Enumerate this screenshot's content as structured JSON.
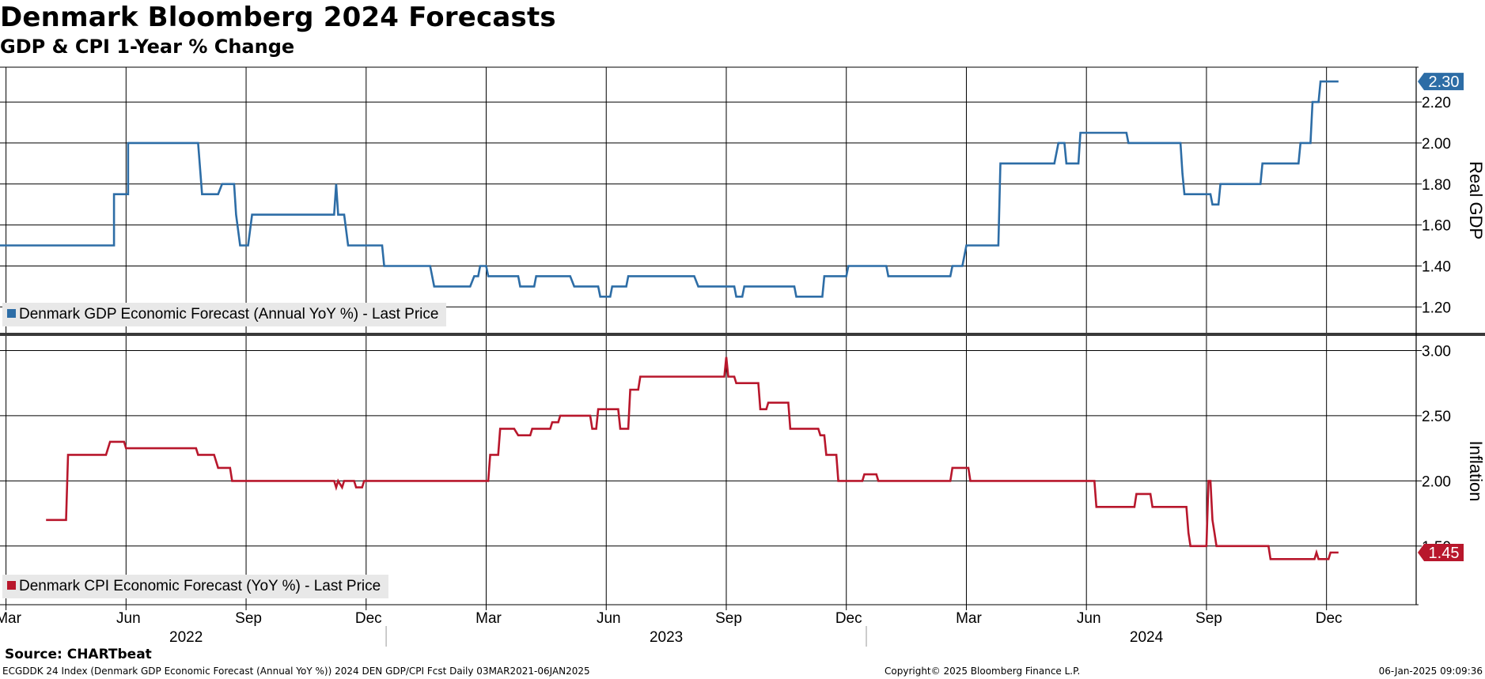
{
  "header": {
    "title": "Denmark Bloomberg 2024 Forecasts",
    "subtitle": "GDP & CPI 1-Year % Change"
  },
  "footer": {
    "source": "Source: CHARTbeat",
    "description": "ECGDDK 24 Index (Denmark GDP Economic Forecast (Annual YoY %)) 2024 DEN GDP/CPI Fcst  Daily 03MAR2021-06JAN2025",
    "copyright": "Copyright© 2025 Bloomberg Finance L.P.",
    "timestamp": "06-Jan-2025 09:09:36"
  },
  "colors": {
    "gdp": "#2d6da6",
    "cpi": "#b8172c",
    "grid": "#000000"
  },
  "chart_data": {
    "type": "line",
    "x_axis": {
      "unit": "month index (0 = Mar 2022)",
      "range": [
        -0.15,
        35.3
      ],
      "ticks": [
        {
          "pos": 0,
          "label": "Mar"
        },
        {
          "pos": 3,
          "label": "Jun"
        },
        {
          "pos": 6,
          "label": "Sep"
        },
        {
          "pos": 9,
          "label": "Dec"
        },
        {
          "pos": 12,
          "label": "Mar"
        },
        {
          "pos": 15,
          "label": "Jun"
        },
        {
          "pos": 18,
          "label": "Sep"
        },
        {
          "pos": 21,
          "label": "Dec"
        },
        {
          "pos": 24,
          "label": "Mar"
        },
        {
          "pos": 27,
          "label": "Jun"
        },
        {
          "pos": 30,
          "label": "Sep"
        },
        {
          "pos": 33,
          "label": "Dec"
        }
      ],
      "years": [
        {
          "pos": 4.5,
          "label": "2022"
        },
        {
          "pos": 16.5,
          "label": "2023"
        },
        {
          "pos": 28.5,
          "label": "2024"
        }
      ],
      "year_separators": [
        9.5,
        21.5
      ]
    },
    "panels": [
      {
        "name": "Denmark GDP Economic Forecast (Annual YoY %) - Last Price",
        "ylabel": "Real GDP",
        "ylim": [
          1.07,
          2.37
        ],
        "yticks": [
          1.2,
          1.4,
          1.6,
          1.8,
          2.0,
          2.2
        ],
        "ytick_labels": [
          "1.20",
          "1.40",
          "1.60",
          "1.80",
          "2.00",
          "2.20"
        ],
        "last_value": "2.30",
        "series": [
          [
            -0.15,
            1.5
          ],
          [
            2.7,
            1.5
          ],
          [
            2.7,
            1.75
          ],
          [
            3.05,
            1.75
          ],
          [
            3.05,
            2.0
          ],
          [
            4.8,
            2.0
          ],
          [
            4.9,
            1.75
          ],
          [
            5.3,
            1.75
          ],
          [
            5.4,
            1.8
          ],
          [
            5.7,
            1.8
          ],
          [
            5.75,
            1.65
          ],
          [
            5.85,
            1.5
          ],
          [
            6.05,
            1.5
          ],
          [
            6.15,
            1.65
          ],
          [
            8.2,
            1.65
          ],
          [
            8.25,
            1.8
          ],
          [
            8.3,
            1.65
          ],
          [
            8.45,
            1.65
          ],
          [
            8.55,
            1.5
          ],
          [
            9.4,
            1.5
          ],
          [
            9.45,
            1.4
          ],
          [
            10.6,
            1.4
          ],
          [
            10.7,
            1.3
          ],
          [
            11.6,
            1.3
          ],
          [
            11.7,
            1.35
          ],
          [
            11.8,
            1.35
          ],
          [
            11.85,
            1.4
          ],
          [
            12.0,
            1.4
          ],
          [
            12.05,
            1.35
          ],
          [
            12.8,
            1.35
          ],
          [
            12.85,
            1.3
          ],
          [
            13.2,
            1.3
          ],
          [
            13.25,
            1.35
          ],
          [
            14.1,
            1.35
          ],
          [
            14.2,
            1.3
          ],
          [
            14.8,
            1.3
          ],
          [
            14.85,
            1.25
          ],
          [
            15.1,
            1.25
          ],
          [
            15.15,
            1.3
          ],
          [
            15.5,
            1.3
          ],
          [
            15.55,
            1.35
          ],
          [
            17.2,
            1.35
          ],
          [
            17.3,
            1.3
          ],
          [
            18.2,
            1.3
          ],
          [
            18.25,
            1.25
          ],
          [
            18.4,
            1.25
          ],
          [
            18.45,
            1.3
          ],
          [
            18.8,
            1.3
          ],
          [
            18.85,
            1.3
          ],
          [
            19.7,
            1.3
          ],
          [
            19.75,
            1.25
          ],
          [
            20.4,
            1.25
          ],
          [
            20.45,
            1.35
          ],
          [
            21.0,
            1.35
          ],
          [
            21.05,
            1.4
          ],
          [
            22.0,
            1.4
          ],
          [
            22.05,
            1.35
          ],
          [
            23.6,
            1.35
          ],
          [
            23.65,
            1.4
          ],
          [
            23.9,
            1.4
          ],
          [
            24.0,
            1.5
          ],
          [
            24.8,
            1.5
          ],
          [
            24.85,
            1.9
          ],
          [
            26.2,
            1.9
          ],
          [
            26.3,
            2.0
          ],
          [
            26.45,
            2.0
          ],
          [
            26.5,
            1.9
          ],
          [
            26.8,
            1.9
          ],
          [
            26.85,
            2.05
          ],
          [
            28.0,
            2.05
          ],
          [
            28.05,
            2.0
          ],
          [
            29.35,
            2.0
          ],
          [
            29.4,
            1.85
          ],
          [
            29.45,
            1.75
          ],
          [
            30.1,
            1.75
          ],
          [
            30.15,
            1.7
          ],
          [
            30.3,
            1.7
          ],
          [
            30.35,
            1.8
          ],
          [
            31.35,
            1.8
          ],
          [
            31.4,
            1.9
          ],
          [
            32.3,
            1.9
          ],
          [
            32.35,
            2.0
          ],
          [
            32.6,
            2.0
          ],
          [
            32.65,
            2.2
          ],
          [
            32.8,
            2.2
          ],
          [
            32.85,
            2.3
          ],
          [
            33.3,
            2.3
          ]
        ]
      },
      {
        "name": "Denmark CPI Economic Forecast (YoY %) - Last Price",
        "ylabel": "Inflation",
        "ylim": [
          1.05,
          3.1
        ],
        "yticks": [
          1.5,
          2.0,
          2.5,
          3.0
        ],
        "ytick_labels": [
          "1.50",
          "2.00",
          "2.50",
          "3.00"
        ],
        "last_value": "1.45",
        "series": [
          [
            1.0,
            1.7
          ],
          [
            1.5,
            1.7
          ],
          [
            1.55,
            2.2
          ],
          [
            2.5,
            2.2
          ],
          [
            2.6,
            2.3
          ],
          [
            2.95,
            2.3
          ],
          [
            3.0,
            2.25
          ],
          [
            4.75,
            2.25
          ],
          [
            4.8,
            2.2
          ],
          [
            5.2,
            2.2
          ],
          [
            5.3,
            2.1
          ],
          [
            5.6,
            2.1
          ],
          [
            5.65,
            2.0
          ],
          [
            8.2,
            2.0
          ],
          [
            8.25,
            1.95
          ],
          [
            8.3,
            2.0
          ],
          [
            8.4,
            1.95
          ],
          [
            8.45,
            2.0
          ],
          [
            8.7,
            2.0
          ],
          [
            8.75,
            1.95
          ],
          [
            8.9,
            1.95
          ],
          [
            8.95,
            2.0
          ],
          [
            12.05,
            2.0
          ],
          [
            12.1,
            2.2
          ],
          [
            12.15,
            2.2
          ],
          [
            12.3,
            2.2
          ],
          [
            12.35,
            2.4
          ],
          [
            12.7,
            2.4
          ],
          [
            12.8,
            2.35
          ],
          [
            13.1,
            2.35
          ],
          [
            13.15,
            2.4
          ],
          [
            13.6,
            2.4
          ],
          [
            13.65,
            2.45
          ],
          [
            13.8,
            2.45
          ],
          [
            13.85,
            2.5
          ],
          [
            14.6,
            2.5
          ],
          [
            14.65,
            2.4
          ],
          [
            14.75,
            2.4
          ],
          [
            14.8,
            2.55
          ],
          [
            15.3,
            2.55
          ],
          [
            15.35,
            2.4
          ],
          [
            15.55,
            2.4
          ],
          [
            15.6,
            2.7
          ],
          [
            15.8,
            2.7
          ],
          [
            15.85,
            2.8
          ],
          [
            17.95,
            2.8
          ],
          [
            18.0,
            2.95
          ],
          [
            18.05,
            2.8
          ],
          [
            18.2,
            2.8
          ],
          [
            18.25,
            2.75
          ],
          [
            18.8,
            2.75
          ],
          [
            18.85,
            2.55
          ],
          [
            19.0,
            2.55
          ],
          [
            19.05,
            2.6
          ],
          [
            19.55,
            2.6
          ],
          [
            19.6,
            2.4
          ],
          [
            20.3,
            2.4
          ],
          [
            20.35,
            2.35
          ],
          [
            20.45,
            2.35
          ],
          [
            20.5,
            2.2
          ],
          [
            20.75,
            2.2
          ],
          [
            20.8,
            2.0
          ],
          [
            21.4,
            2.0
          ],
          [
            21.45,
            2.05
          ],
          [
            21.75,
            2.05
          ],
          [
            21.8,
            2.0
          ],
          [
            23.6,
            2.0
          ],
          [
            23.65,
            2.1
          ],
          [
            24.05,
            2.1
          ],
          [
            24.1,
            2.0
          ],
          [
            27.2,
            2.0
          ],
          [
            27.25,
            1.8
          ],
          [
            28.2,
            1.8
          ],
          [
            28.25,
            1.9
          ],
          [
            28.6,
            1.9
          ],
          [
            28.65,
            1.8
          ],
          [
            29.5,
            1.8
          ],
          [
            29.55,
            1.6
          ],
          [
            29.6,
            1.5
          ],
          [
            30.0,
            1.5
          ],
          [
            30.05,
            2.0
          ],
          [
            30.1,
            2.0
          ],
          [
            30.15,
            1.7
          ],
          [
            30.2,
            1.6
          ],
          [
            30.25,
            1.5
          ],
          [
            31.55,
            1.5
          ],
          [
            31.6,
            1.4
          ],
          [
            32.7,
            1.4
          ],
          [
            32.75,
            1.45
          ],
          [
            32.8,
            1.4
          ],
          [
            33.05,
            1.4
          ],
          [
            33.1,
            1.45
          ],
          [
            33.3,
            1.45
          ]
        ]
      }
    ]
  }
}
